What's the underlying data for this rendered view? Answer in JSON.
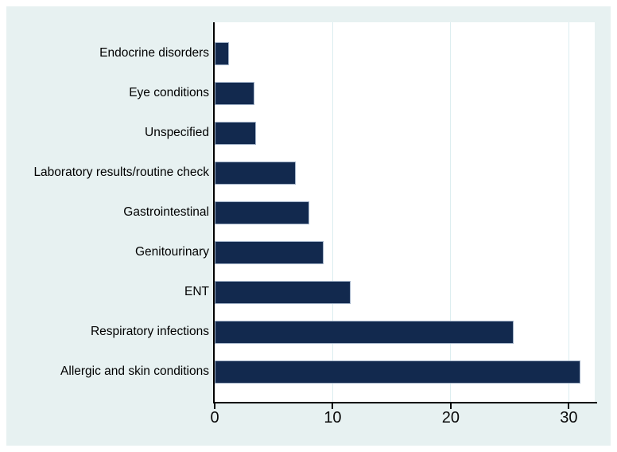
{
  "figure": {
    "title": "",
    "page_background": "#ffffff",
    "background_color": "#e7f1f1",
    "plot_background": "#ffffff",
    "axis_color": "#000000"
  },
  "chart_data": {
    "type": "bar",
    "orientation": "horizontal",
    "title": "",
    "xlabel": "",
    "ylabel": "",
    "categories": [
      "Endocrine disorders",
      "Eye conditions",
      "Unspecified",
      "Laboratory results/routine check",
      "Gastrointestinal",
      "Genitourinary",
      "ENT",
      "Respiratory infections",
      "Allergic and skin conditions"
    ],
    "values": [
      1.2,
      3.4,
      3.5,
      6.9,
      8.0,
      9.2,
      11.5,
      25.3,
      31.0
    ],
    "xlim": [
      0,
      32.2
    ],
    "xticks": [
      0,
      10,
      20,
      30
    ],
    "xtick_labels": [
      "0",
      "10",
      "20",
      "30"
    ],
    "grid": true,
    "legend": "none",
    "bar_color": "#12294e",
    "bar_outline_color": "#9fb0c6",
    "gridline_color": "#dceef0"
  }
}
